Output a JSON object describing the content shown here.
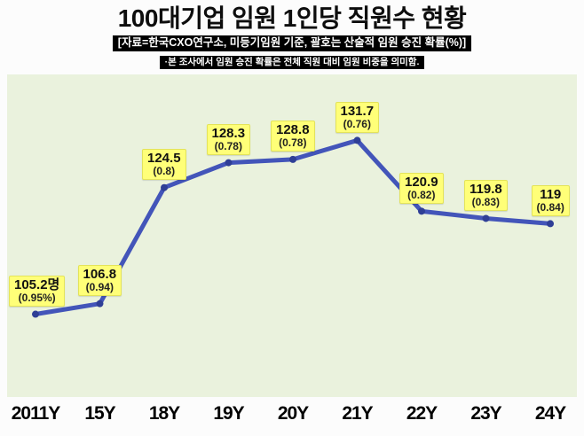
{
  "header": {
    "title": "100대기업 임원 1인당 직원수 현황",
    "subtitle": "[자료=한국CXO연구소, 미등기임원 기준, 괄호는 산술적 임원 승진 확률(%)]",
    "note": "·본 조사에서 임원 승진 확률은 전체 직원 대비 임원 비중을 의미함."
  },
  "chart_data": {
    "type": "line",
    "title": "100대기업 임원 1인당 직원수 현황",
    "categories": [
      "2011Y",
      "15Y",
      "18Y",
      "19Y",
      "20Y",
      "21Y",
      "22Y",
      "23Y",
      "24Y"
    ],
    "values": [
      105.2,
      106.8,
      124.5,
      128.3,
      128.8,
      131.7,
      120.9,
      119.8,
      119
    ],
    "point_labels": [
      "105.2명",
      "106.8",
      "124.5",
      "128.3",
      "128.8",
      "131.7",
      "120.9",
      "119.8",
      "119"
    ],
    "paren_labels": [
      "(0.95%)",
      "(0.94)",
      "(0.8)",
      "(0.78)",
      "(0.78)",
      "(0.76)",
      "(0.82)",
      "(0.83)",
      "(0.84)"
    ],
    "xlabel": "",
    "ylabel": "",
    "ylim": [
      100,
      135
    ],
    "grid": false,
    "legend": "none",
    "colors": {
      "line": "#4355b9",
      "marker": "#2f3f96",
      "label_bg": "#ffff78",
      "plot_bg": "#eaf2dd",
      "page_bg": "#fcfcfc"
    }
  }
}
